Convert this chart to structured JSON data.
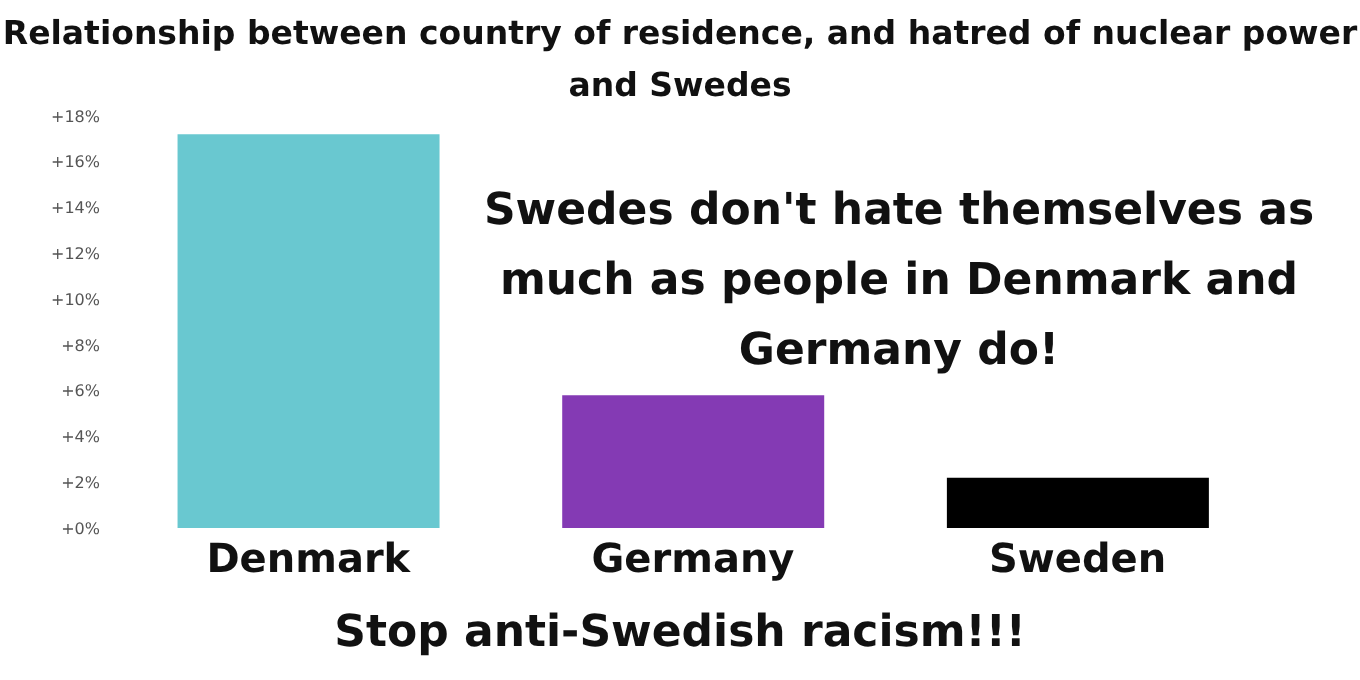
{
  "chart_data": {
    "type": "bar",
    "title": "Relationship between country of residence, and hatred of nuclear power and Swedes",
    "categories": [
      "Denmark",
      "Germany",
      "Sweden"
    ],
    "values": [
      17.2,
      5.8,
      2.2
    ],
    "colors": [
      "#69c8d0",
      "#843ab4",
      "#000000"
    ],
    "ylim": [
      0,
      18
    ],
    "yticks": [
      {
        "value": 0,
        "label": "+0%"
      },
      {
        "value": 2,
        "label": "+2%"
      },
      {
        "value": 4,
        "label": "+4%"
      },
      {
        "value": 6,
        "label": "+6%"
      },
      {
        "value": 8,
        "label": "+8%"
      },
      {
        "value": 10,
        "label": "+10%"
      },
      {
        "value": 12,
        "label": "+12%"
      },
      {
        "value": 14,
        "label": "+14%"
      },
      {
        "value": 16,
        "label": "+16%"
      },
      {
        "value": 18,
        "label": "+18%"
      }
    ],
    "grid": false,
    "annotations": [
      "Swedes don't hate themselves as much as people in Denmark and Germany do!",
      "Stop anti-Swedish racism!!!"
    ]
  }
}
